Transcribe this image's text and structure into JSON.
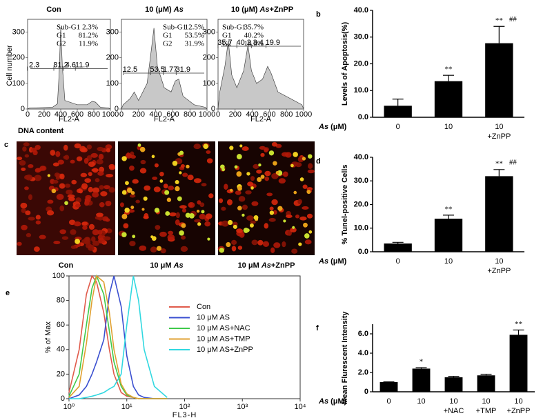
{
  "flow": {
    "panel": "a",
    "ylabel": "Cell number",
    "xlabel": "DNA content",
    "axis_label": "FL2-A",
    "title_italic": 1,
    "xlim": [
      0,
      1000
    ],
    "ylim": [
      0,
      350
    ],
    "xticks": [
      0,
      200,
      400,
      600,
      800,
      1000
    ],
    "yticks": [
      0,
      100,
      200,
      300
    ],
    "panels": [
      {
        "title": [
          "Con"
        ],
        "stats": [
          [
            "Sub-G1",
            "2.3%"
          ],
          [
            "G1",
            "81.2%"
          ],
          [
            "G2",
            "11.9%"
          ]
        ],
        "gates": [
          "2.3",
          "81.2",
          "4.6",
          "11.9"
        ]
      },
      {
        "title": [
          "10 (μM) ",
          "As"
        ],
        "stats": [
          [
            "Sub-G1",
            "12.5%"
          ],
          [
            "G1",
            "53.5%"
          ],
          [
            "G2",
            "31.9%"
          ]
        ],
        "gates": [
          "12.5",
          "53.5",
          "1.77",
          "31.9"
        ]
      },
      {
        "title": [
          "10 (μM) ",
          "As",
          "+ZnPP"
        ],
        "stats": [
          [
            "Sub-G1",
            "35.7%"
          ],
          [
            "G1",
            "40.2%"
          ],
          [
            "G2",
            "19.9%"
          ]
        ],
        "gates": [
          "35.7",
          "40.2",
          "3.4",
          "19.9"
        ]
      }
    ]
  },
  "images": {
    "panel": "c",
    "label_italic": 1,
    "labels": [
      [
        "Con"
      ],
      [
        "10 μM ",
        "As"
      ],
      [
        "10 μM ",
        "As",
        "+ZnPP"
      ]
    ]
  },
  "chart_data": [
    {
      "type": "bar",
      "panel": "b",
      "ylabel": "Levels of Apoptosis(%)",
      "x_label": [
        "As",
        " (μM)"
      ],
      "x_label_italic": 0,
      "categories": [
        "0",
        "10",
        "10"
      ],
      "category_sublabels": [
        null,
        null,
        "+ZnPP"
      ],
      "values": [
        4.3,
        13.5,
        27.7
      ],
      "errors": [
        2.5,
        2.2,
        6.3
      ],
      "markers": [
        null,
        "**",
        "**"
      ],
      "markers2": [
        null,
        null,
        "##"
      ],
      "color": "#000000",
      "ylim": [
        0,
        40
      ],
      "yticks": [
        {
          "value": 0,
          "label": "0.0"
        },
        {
          "value": 10,
          "label": "10.0"
        },
        {
          "value": 20,
          "label": "20.0"
        },
        {
          "value": 30,
          "label": "30.0"
        },
        {
          "value": 40,
          "label": "40.0"
        }
      ]
    },
    {
      "type": "bar",
      "panel": "d",
      "ylabel": "% Tunel-positive Cells",
      "x_label": [
        "As",
        " (μM)"
      ],
      "x_label_italic": 0,
      "categories": [
        "0",
        "10",
        "10"
      ],
      "category_sublabels": [
        null,
        null,
        "+ZnPP"
      ],
      "values": [
        3.5,
        14.0,
        32.0
      ],
      "errors": [
        0.5,
        1.5,
        2.8
      ],
      "markers": [
        null,
        "**",
        "**"
      ],
      "markers2": [
        null,
        null,
        "##"
      ],
      "color": "#000000",
      "ylim": [
        0,
        40
      ],
      "yticks": [
        {
          "value": 0,
          "label": "0.0"
        },
        {
          "value": 10,
          "label": "10.0"
        },
        {
          "value": 20,
          "label": "20.0"
        },
        {
          "value": 30,
          "label": "30.0"
        },
        {
          "value": 40,
          "label": "40.0"
        }
      ]
    },
    {
      "type": "line",
      "panel": "e",
      "ylabel": "% of Max",
      "xlabel": "FL3-H",
      "log_x": true,
      "legend": "upper right",
      "xlim": [
        1,
        10000
      ],
      "ylim": [
        0,
        100
      ],
      "xticks": [
        {
          "value": 1,
          "label": "10⁰"
        },
        {
          "value": 10,
          "label": "10¹"
        },
        {
          "value": 100,
          "label": "10²"
        },
        {
          "value": 1000,
          "label": "10³"
        },
        {
          "value": 10000,
          "label": "10⁴"
        }
      ],
      "yticks": [
        0,
        20,
        40,
        60,
        80,
        100
      ],
      "x": [
        1,
        1.5,
        2,
        2.5,
        3,
        4,
        5,
        6,
        8,
        10,
        13,
        16,
        20,
        30,
        50
      ],
      "series": [
        {
          "name": "Con",
          "color": "#e05a4a",
          "values": [
            5,
            40,
            85,
            100,
            95,
            70,
            40,
            20,
            5,
            2,
            1,
            0,
            0,
            0,
            0
          ]
        },
        {
          "name": "10 μM AS",
          "color": "#3a4fd0",
          "values": [
            0,
            3,
            10,
            20,
            30,
            48,
            85,
            100,
            75,
            35,
            10,
            3,
            1,
            0,
            0
          ]
        },
        {
          "name": "10 μM AS+NAC",
          "color": "#3ec94a",
          "values": [
            2,
            20,
            60,
            90,
            100,
            85,
            55,
            30,
            10,
            3,
            1,
            0,
            0,
            0,
            0
          ]
        },
        {
          "name": "10 μM AS+TMP",
          "color": "#e0a030",
          "values": [
            1,
            10,
            45,
            80,
            100,
            95,
            70,
            40,
            12,
            4,
            1,
            0,
            0,
            0,
            0
          ]
        },
        {
          "name": "10 μM AS+ZnPP",
          "color": "#30d8e0",
          "values": [
            0,
            0,
            1,
            2,
            3,
            5,
            8,
            10,
            20,
            60,
            100,
            80,
            40,
            10,
            1
          ]
        }
      ]
    },
    {
      "type": "bar",
      "panel": "f",
      "ylabel": "Mean Flurescent Intensity",
      "x_label": [
        "As",
        " (μM)"
      ],
      "x_label_italic": 0,
      "categories": [
        "0",
        "10",
        "10",
        "10",
        "10"
      ],
      "category_sublabels": [
        null,
        null,
        "+NAC",
        "+TMP",
        "+ZnPP"
      ],
      "values": [
        1.0,
        2.4,
        1.5,
        1.7,
        5.9
      ],
      "errors": [
        0.03,
        0.1,
        0.1,
        0.12,
        0.5
      ],
      "markers": [
        null,
        "*",
        null,
        null,
        "**"
      ],
      "markers2": [
        null,
        null,
        null,
        null,
        null
      ],
      "color": "#000000",
      "ylim": [
        0,
        7
      ],
      "yticks": [
        0,
        {
          "value": 2,
          "label": "2.0"
        },
        {
          "value": 4,
          "label": "4.0"
        },
        {
          "value": 6,
          "label": "6.0"
        }
      ]
    }
  ]
}
